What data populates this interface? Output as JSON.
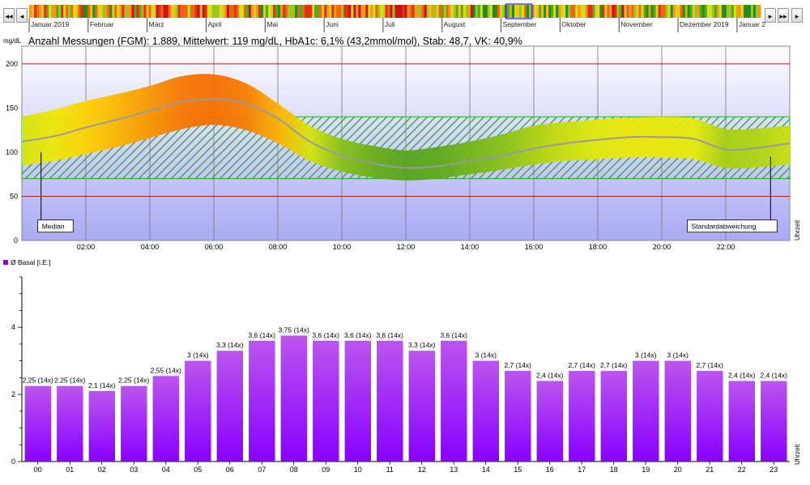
{
  "nav": {
    "first_label": "◂◂",
    "prev_label": "◂",
    "next_label": "▸",
    "last_label": "▸▸",
    "end_label": "▸"
  },
  "timeline": {
    "months": [
      "Januar 2019",
      "Februar",
      "März",
      "April",
      "Mai",
      "Juni",
      "Juli",
      "August",
      "September",
      "Oktober",
      "November",
      "Dezember 2019",
      "Januar 2"
    ],
    "selected_month_index": 8
  },
  "summary": "Anzahl Messungen (FGM): 1.889, Mittelwert: 119 mg/dL, HbA1c: 6,1% (43,2mmol/mol), Stab: 48,7, VK: 40,9%",
  "colors": {
    "target_band_hatch": "#22aa22",
    "limit_line": "#aa2222",
    "median_line": "#9a9a9a",
    "bar_fill_top": "#bb55ee",
    "bar_fill_bottom": "#8800ff",
    "legend_square": "#9400d3",
    "plot_bg_top": "#fdfdff",
    "plot_bg_bottom": "#aaaaf5"
  },
  "chart_data": [
    {
      "type": "area",
      "ylabel": "mg/dL",
      "xlabel": "Uhrzeit",
      "ylim": [
        0,
        220
      ],
      "xlim": [
        0,
        24
      ],
      "yticks": [
        0,
        50,
        100,
        150,
        200
      ],
      "xticks": [
        "02:00",
        "04:00",
        "06:00",
        "08:00",
        "10:00",
        "12:00",
        "14:00",
        "16:00",
        "18:00",
        "20:00",
        "22:00"
      ],
      "target_range": [
        70,
        140
      ],
      "limit_lines": [
        50,
        200
      ],
      "hours": [
        0,
        1,
        2,
        3,
        4,
        5,
        6,
        7,
        8,
        9,
        10,
        11,
        12,
        13,
        14,
        15,
        16,
        17,
        18,
        19,
        20,
        21,
        22,
        23,
        24
      ],
      "median": [
        112,
        118,
        128,
        137,
        147,
        157,
        160,
        155,
        138,
        112,
        96,
        87,
        82,
        84,
        90,
        96,
        104,
        110,
        114,
        117,
        117,
        115,
        103,
        105,
        110
      ],
      "upper": [
        140,
        148,
        158,
        166,
        175,
        186,
        188,
        178,
        155,
        130,
        115,
        107,
        102,
        106,
        112,
        120,
        130,
        134,
        137,
        139,
        140,
        138,
        126,
        127,
        130
      ],
      "lower": [
        85,
        90,
        98,
        106,
        116,
        126,
        131,
        125,
        110,
        90,
        78,
        71,
        68,
        70,
        75,
        80,
        86,
        90,
        92,
        94,
        94,
        92,
        82,
        83,
        86
      ],
      "annotations": [
        {
          "text": "Median",
          "hour": 0.6,
          "from_value": 100,
          "to_value": 3
        },
        {
          "text": "Standardabweichung",
          "hour": 23.4,
          "from_value": 95,
          "to_value": 3
        }
      ]
    },
    {
      "type": "bar",
      "series": [
        {
          "name": "Ø Basal [i.E.]"
        }
      ],
      "categories": [
        "00",
        "01",
        "02",
        "03",
        "04",
        "05",
        "06",
        "07",
        "08",
        "09",
        "10",
        "11",
        "12",
        "13",
        "14",
        "15",
        "16",
        "17",
        "18",
        "19",
        "20",
        "21",
        "22",
        "23"
      ],
      "values": [
        2.25,
        2.25,
        2.1,
        2.25,
        2.55,
        3,
        3.3,
        3.6,
        3.75,
        3.6,
        3.6,
        3.6,
        3.3,
        3.6,
        3,
        2.7,
        2.4,
        2.7,
        2.7,
        3,
        3,
        2.7,
        2.4,
        2.4
      ],
      "labels": [
        "2,25 (14x)",
        "2,25 (14x)",
        "2,1 (14x)",
        "2,25 (14x)",
        "2,55 (14x)",
        "3 (14x)",
        "3,3 (14x)",
        "3,6 (14x)",
        "3,75 (14x)",
        "3,6 (14x)",
        "3,6 (14x)",
        "3,6 (14x)",
        "3,3 (14x)",
        "3,6 (14x)",
        "3 (14x)",
        "2,7 (14x)",
        "2,4 (14x)",
        "2,7 (14x)",
        "2,7 (14x)",
        "3 (14x)",
        "3 (14x)",
        "2,7 (14x)",
        "2,4 (14x)",
        "2,4 (14x)"
      ],
      "ylim": [
        0,
        5.5
      ],
      "yticks": [
        0,
        2,
        4
      ],
      "xlabel": "Uhrzeit"
    }
  ]
}
